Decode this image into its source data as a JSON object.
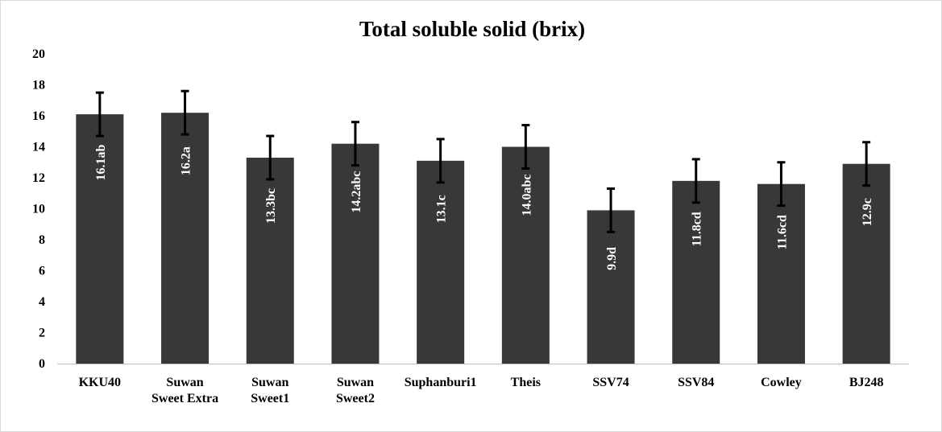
{
  "chart_data": {
    "type": "bar",
    "title": "Total soluble solid (brix)",
    "xlabel": "",
    "ylabel": "",
    "ylim": [
      0,
      20
    ],
    "yticks": [
      0,
      2,
      4,
      6,
      8,
      10,
      12,
      14,
      16,
      18,
      20
    ],
    "grid": false,
    "legend": "none",
    "bar_color": "#3a3836",
    "error_bar_color": "#000000",
    "categories": [
      [
        "KKU40"
      ],
      [
        "Suwan",
        "Sweet Extra"
      ],
      [
        "Suwan",
        "Sweet1"
      ],
      [
        "Suwan",
        "Sweet2"
      ],
      [
        "Suphanburi1"
      ],
      [
        "Theis"
      ],
      [
        "SSV74"
      ],
      [
        "SSV84"
      ],
      [
        "Cowley"
      ],
      [
        "BJ248"
      ]
    ],
    "values": [
      16.1,
      16.2,
      13.3,
      14.2,
      13.1,
      14.0,
      9.9,
      11.8,
      11.6,
      12.9
    ],
    "errors": [
      1.4,
      1.4,
      1.4,
      1.4,
      1.4,
      1.4,
      1.4,
      1.4,
      1.4,
      1.4
    ],
    "data_labels": [
      "16.1ab",
      "16.2a",
      "13.3bc",
      "14.2abc",
      "13.1c",
      "14.0abc",
      "9.9d",
      "11.8cd",
      "11.6cd",
      "12.9c"
    ]
  }
}
